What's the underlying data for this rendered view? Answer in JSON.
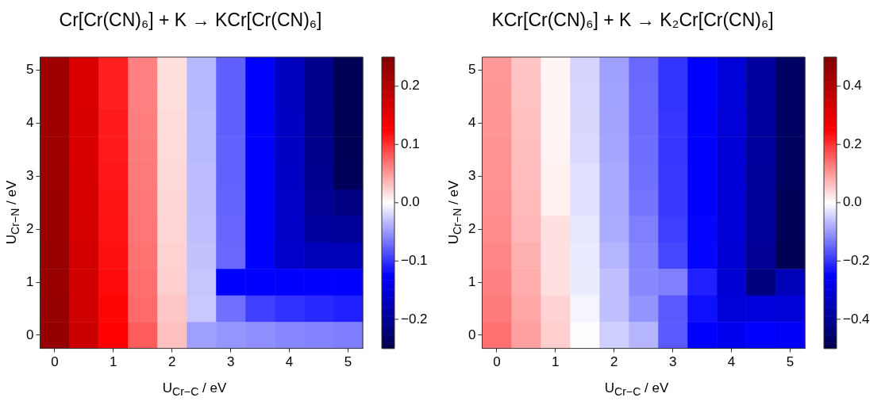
{
  "chart_data": [
    {
      "type": "heatmap",
      "title": "Cr[Cr(CN)₆] + K → KCr[Cr(CN)₆]",
      "xlabel": "U$_{Cr−C}$ / eV",
      "ylabel": "U$_{Cr−N}$ / eV",
      "categories": [
        "0",
        null,
        "1",
        null,
        "2",
        null,
        "3",
        null,
        "4",
        null,
        "5"
      ],
      "y_categories": [
        "5",
        null,
        "4",
        null,
        "3",
        null,
        "2",
        null,
        "1",
        null,
        "0"
      ],
      "cells": [
        [
          0.22,
          0.16,
          0.11,
          0.062,
          0.016,
          -0.035,
          -0.078,
          -0.125,
          -0.17,
          -0.207,
          -0.245
        ],
        [
          0.22,
          0.16,
          0.11,
          0.062,
          0.016,
          -0.035,
          -0.078,
          -0.125,
          -0.17,
          -0.207,
          -0.245
        ],
        [
          0.22,
          0.162,
          0.112,
          0.063,
          0.017,
          -0.034,
          -0.078,
          -0.125,
          -0.168,
          -0.205,
          -0.245
        ],
        [
          0.222,
          0.163,
          0.113,
          0.064,
          0.018,
          -0.034,
          -0.077,
          -0.125,
          -0.167,
          -0.205,
          -0.243
        ],
        [
          0.222,
          0.164,
          0.114,
          0.065,
          0.019,
          -0.033,
          -0.077,
          -0.125,
          -0.166,
          -0.204,
          -0.24
        ],
        [
          0.223,
          0.165,
          0.115,
          0.066,
          0.02,
          -0.032,
          -0.076,
          -0.125,
          -0.165,
          -0.2,
          -0.214
        ],
        [
          0.224,
          0.166,
          0.116,
          0.067,
          0.021,
          -0.031,
          -0.075,
          -0.125,
          -0.164,
          -0.194,
          -0.196
        ],
        [
          0.225,
          0.168,
          0.118,
          0.069,
          0.022,
          -0.03,
          -0.074,
          -0.125,
          -0.162,
          -0.175,
          -0.175
        ],
        [
          0.226,
          0.17,
          0.12,
          0.071,
          0.024,
          -0.028,
          -0.125,
          -0.125,
          -0.125,
          -0.125,
          -0.125
        ],
        [
          0.228,
          0.172,
          0.122,
          0.073,
          0.028,
          -0.027,
          -0.07,
          -0.094,
          -0.101,
          -0.105,
          -0.11
        ],
        [
          0.23,
          0.175,
          0.125,
          0.08,
          0.031,
          -0.047,
          -0.052,
          -0.055,
          -0.059,
          -0.061,
          -0.063
        ]
      ],
      "clim": [
        -0.25,
        0.25
      ],
      "cticks": [
        {
          "value": -0.2,
          "label": "−0.2"
        },
        {
          "value": -0.1,
          "label": "−0.1"
        },
        {
          "value": 0,
          "label": "0.0"
        },
        {
          "value": 0.1,
          "label": "0.1"
        },
        {
          "value": 0.2,
          "label": "0.2"
        }
      ]
    },
    {
      "type": "heatmap",
      "title": "KCr[Cr(CN)₆] + K → K₂Cr[Cr(CN)₆]",
      "xlabel": "U$_{Cr−C}$ / eV",
      "ylabel": "U$_{Cr−N}$ / eV",
      "categories": [
        "0",
        null,
        "1",
        null,
        "2",
        null,
        "3",
        null,
        "4",
        null,
        "5"
      ],
      "y_categories": [
        "5",
        null,
        "4",
        null,
        "3",
        null,
        "2",
        null,
        "1",
        null,
        "0"
      ],
      "cells": [
        [
          0.1,
          0.057,
          0.01,
          -0.042,
          -0.094,
          -0.148,
          -0.2,
          -0.25,
          -0.305,
          -0.385,
          -0.47
        ],
        [
          0.102,
          0.06,
          0.01,
          -0.04,
          -0.092,
          -0.146,
          -0.2,
          -0.25,
          -0.305,
          -0.386,
          -0.47
        ],
        [
          0.104,
          0.062,
          0.011,
          -0.038,
          -0.09,
          -0.145,
          -0.197,
          -0.25,
          -0.306,
          -0.387,
          -0.47
        ],
        [
          0.106,
          0.064,
          0.012,
          -0.036,
          -0.088,
          -0.143,
          -0.196,
          -0.25,
          -0.307,
          -0.388,
          -0.472
        ],
        [
          0.108,
          0.066,
          0.015,
          -0.03,
          -0.083,
          -0.14,
          -0.195,
          -0.25,
          -0.307,
          -0.39,
          -0.475
        ],
        [
          0.11,
          0.068,
          0.015,
          -0.03,
          -0.083,
          -0.135,
          -0.193,
          -0.25,
          -0.308,
          -0.39,
          -0.485
        ],
        [
          0.114,
          0.072,
          0.03,
          -0.024,
          -0.08,
          -0.125,
          -0.188,
          -0.245,
          -0.308,
          -0.392,
          -0.486
        ],
        [
          0.118,
          0.076,
          0.03,
          -0.022,
          -0.073,
          -0.12,
          -0.18,
          -0.245,
          -0.31,
          -0.395,
          -0.49
        ],
        [
          0.124,
          0.08,
          0.03,
          -0.02,
          -0.062,
          -0.117,
          -0.125,
          -0.22,
          -0.31,
          -0.43,
          -0.35
        ],
        [
          0.13,
          0.087,
          0.043,
          -0.01,
          -0.062,
          -0.105,
          -0.163,
          -0.235,
          -0.304,
          -0.3,
          -0.304
        ],
        [
          0.14,
          0.094,
          0.047,
          -0.002,
          -0.047,
          -0.074,
          -0.163,
          -0.25,
          -0.27,
          -0.25,
          -0.26
        ]
      ],
      "clim": [
        -0.5,
        0.5
      ],
      "cticks": [
        {
          "value": -0.4,
          "label": "−0.4"
        },
        {
          "value": -0.2,
          "label": "−0.2"
        },
        {
          "value": 0,
          "label": "0.0"
        },
        {
          "value": 0.2,
          "label": "0.2"
        },
        {
          "value": 0.4,
          "label": "0.4"
        }
      ]
    }
  ]
}
